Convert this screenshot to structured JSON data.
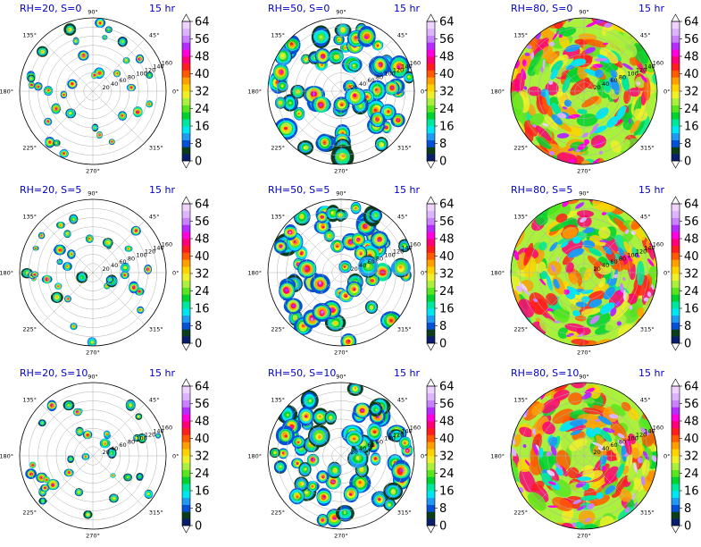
{
  "chart_data": [
    {
      "type": "heatmap",
      "subtype": "polar-filled-contour",
      "title": "RH=20, S=0",
      "time_label": "15 hr",
      "coverage": "sparse",
      "seed": 11
    },
    {
      "type": "heatmap",
      "subtype": "polar-filled-contour",
      "title": "RH=50, S=0",
      "time_label": "15 hr",
      "coverage": "medium",
      "seed": 23
    },
    {
      "type": "heatmap",
      "subtype": "polar-filled-contour",
      "title": "RH=80, S=0",
      "time_label": "15 hr",
      "coverage": "full",
      "seed": 37
    },
    {
      "type": "heatmap",
      "subtype": "polar-filled-contour",
      "title": "RH=20, S=5",
      "time_label": "15 hr",
      "coverage": "sparse",
      "seed": 41
    },
    {
      "type": "heatmap",
      "subtype": "polar-filled-contour",
      "title": "RH=50, S=5",
      "time_label": "15 hr",
      "coverage": "medium",
      "seed": 53
    },
    {
      "type": "heatmap",
      "subtype": "polar-filled-contour",
      "title": "RH=80, S=5",
      "time_label": "15 hr",
      "coverage": "full",
      "seed": 67
    },
    {
      "type": "heatmap",
      "subtype": "polar-filled-contour",
      "title": "RH=20, S=10",
      "time_label": "15 hr",
      "coverage": "sparse",
      "seed": 71
    },
    {
      "type": "heatmap",
      "subtype": "polar-filled-contour",
      "title": "RH=50, S=10",
      "time_label": "15 hr",
      "coverage": "medium",
      "seed": 83
    },
    {
      "type": "heatmap",
      "subtype": "polar-filled-contour",
      "title": "RH=80, S=10",
      "time_label": "15 hr",
      "coverage": "full",
      "seed": 97
    }
  ],
  "shared": {
    "angular_ticks": [
      "0°",
      "45°",
      "90°",
      "135°",
      "180°",
      "225°",
      "270°",
      "315°"
    ],
    "radial_ticks": [
      "20",
      "40",
      "60",
      "80",
      "100",
      "120",
      "140",
      "160"
    ],
    "radial_max": 160,
    "colorbar": {
      "range": [
        0,
        64
      ],
      "tick_labels": [
        "0",
        "8",
        "16",
        "24",
        "32",
        "40",
        "48",
        "56",
        "64"
      ],
      "extend": "both",
      "colors": [
        "#0a1e6e",
        "#0b3d1a",
        "#0650d6",
        "#1e9bf0",
        "#00e6f0",
        "#00e69a",
        "#00d230",
        "#5ae61e",
        "#aaf03c",
        "#f0f02a",
        "#ffd200",
        "#ffa000",
        "#ff5a00",
        "#ff1e1e",
        "#ff0078",
        "#ff00dc",
        "#b42dff",
        "#c882ff",
        "#dcb4ff",
        "#f0d2ff"
      ],
      "under_color": "#ffffff",
      "over_color": "#ffffff"
    }
  }
}
